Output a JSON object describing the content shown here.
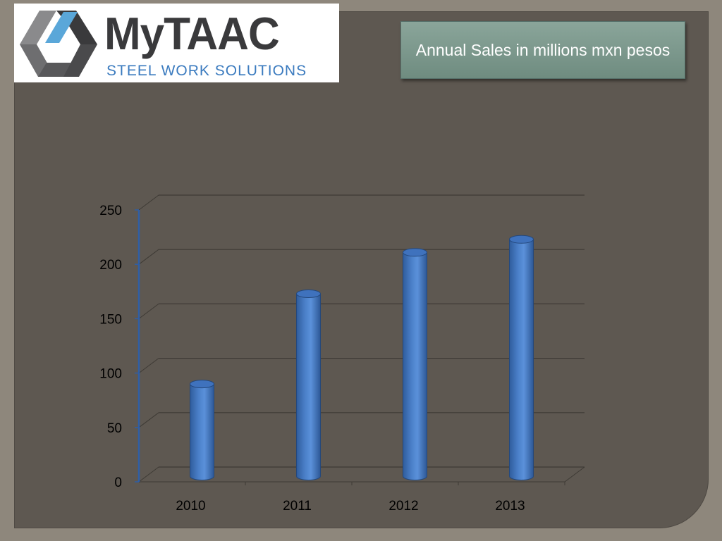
{
  "logo": {
    "wordmark": "MyTAAC",
    "tagline": "STEEL WORK SOLUTIONS"
  },
  "title": "Annual Sales in millions mxn pesos",
  "colors": {
    "background": "#5e5851",
    "frame": "#8e877c",
    "bar": "#4a7fc8",
    "title_box": "#7e998e",
    "logo_dark": "#3a3a3c",
    "logo_blue": "#3b7bbf"
  },
  "chart_data": {
    "type": "bar",
    "title": "Annual Sales in millions mxn pesos",
    "categories": [
      "2010",
      "2011",
      "2012",
      "2013"
    ],
    "values": [
      88,
      171,
      209,
      221
    ],
    "ylim": [
      0,
      250
    ],
    "yticks": [
      0,
      50,
      100,
      150,
      200,
      250
    ],
    "style": "3d-cylinder",
    "grid": true,
    "legend": "none",
    "xlabel": "",
    "ylabel": ""
  }
}
